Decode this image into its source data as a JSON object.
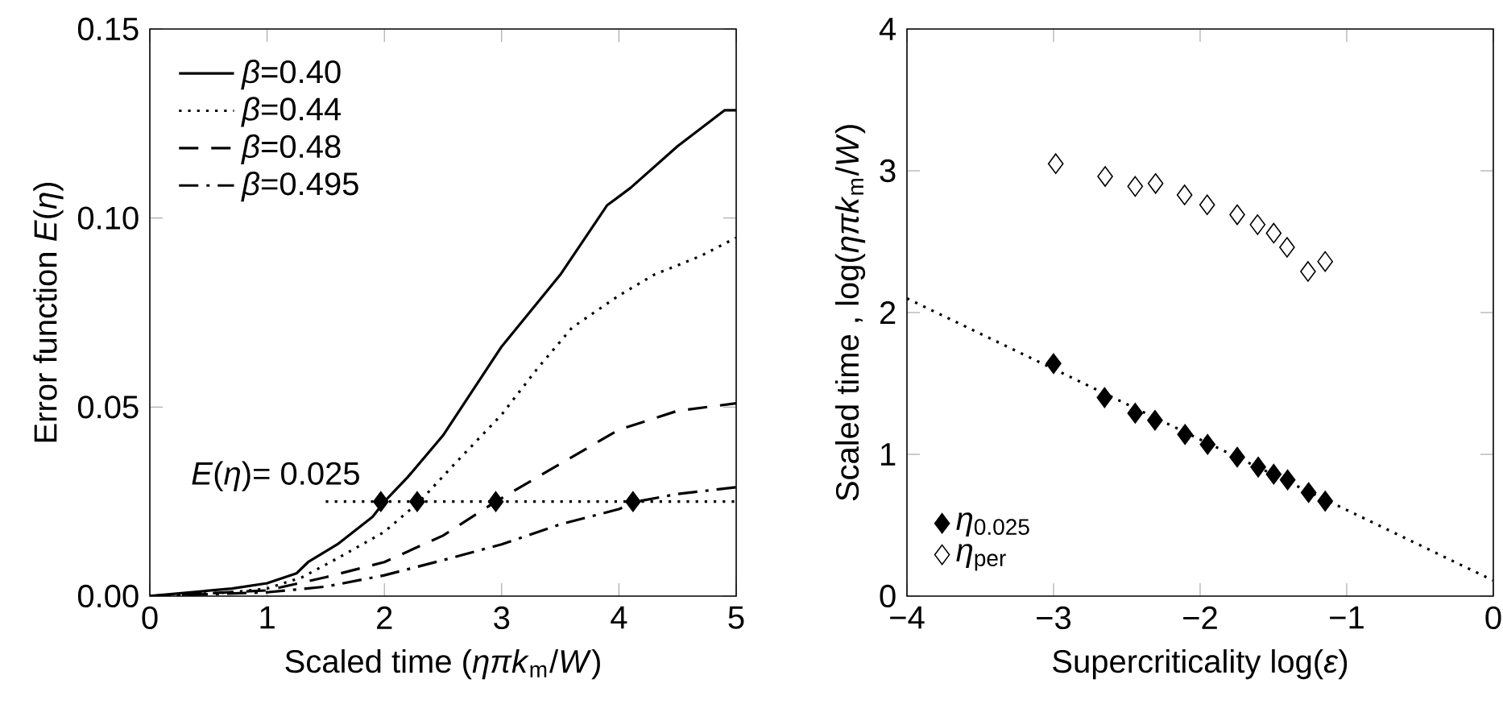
{
  "chart_data": [
    {
      "type": "line",
      "xlabel": "Scaled time (*ηπk*$_{m}$/*W*)",
      "ylabel": "Error function *E*(*η*)",
      "xlim": [
        0,
        5
      ],
      "ylim": [
        0,
        0.15
      ],
      "xticks": [
        0,
        1,
        2,
        3,
        4,
        5
      ],
      "yticks": [
        {
          "value": 0,
          "label": "0.00"
        },
        {
          "value": 0.05,
          "label": "0.05"
        },
        {
          "value": 0.1,
          "label": "0.10"
        },
        {
          "value": 0.15,
          "label": "0.15"
        }
      ],
      "legend": "top left",
      "grid": false,
      "annotations": [
        {
          "text": "*E*(*η*)= 0.025",
          "x": 1.5,
          "y": 0.025
        }
      ],
      "series": [
        {
          "name": "*β*=0.40",
          "color": "#000000",
          "line_style": "solid",
          "x": [
            0,
            0.7,
            1.0,
            1.25,
            1.35,
            1.6,
            1.9,
            2.0,
            2.2,
            2.5,
            3.0,
            3.5,
            3.9,
            4.1,
            4.5,
            4.9,
            5.0
          ],
          "values": [
            0,
            0.002,
            0.0034,
            0.006,
            0.009,
            0.0137,
            0.021,
            0.025,
            0.0315,
            0.0425,
            0.066,
            0.085,
            0.1034,
            0.108,
            0.119,
            0.1285,
            0.1285
          ]
        },
        {
          "name": "*β*=0.44",
          "color": "#000000",
          "line_style": "dotted",
          "x": [
            0,
            0.7,
            1.0,
            1.3,
            1.6,
            2.0,
            2.3,
            2.6,
            3.0,
            3.3,
            3.6,
            4.0,
            4.3,
            4.7,
            5.0
          ],
          "values": [
            0,
            0.001,
            0.002,
            0.005,
            0.01,
            0.017,
            0.025,
            0.035,
            0.048,
            0.06,
            0.071,
            0.0795,
            0.085,
            0.09,
            0.0948
          ]
        },
        {
          "name": "*β*=0.48",
          "color": "#000000",
          "line_style": "dashed",
          "x": [
            0,
            1.0,
            1.5,
            2.0,
            2.5,
            2.95,
            3.5,
            4.0,
            4.5,
            5.0
          ],
          "values": [
            0,
            0.0015,
            0.005,
            0.009,
            0.016,
            0.025,
            0.035,
            0.044,
            0.049,
            0.051
          ]
        },
        {
          "name": "*β*=0.495",
          "color": "#000000",
          "line_style": "dashdot",
          "x": [
            0,
            1.0,
            1.5,
            2.0,
            2.5,
            3.0,
            3.5,
            4.0,
            4.15,
            4.5,
            5.0
          ],
          "values": [
            0,
            0.001,
            0.0025,
            0.0055,
            0.0095,
            0.0137,
            0.019,
            0.023,
            0.025,
            0.027,
            0.0288
          ]
        },
        {
          "color": "#000000",
          "line_style": "dotted",
          "x": [
            1.5,
            5.0
          ],
          "values": [
            0.025,
            0.025
          ]
        },
        {
          "type": "scatter",
          "color": "#000000",
          "marker": "diamond",
          "x": [
            1.97,
            2.28,
            2.95,
            4.12
          ],
          "values": [
            0.025,
            0.025,
            0.025,
            0.025
          ]
        }
      ]
    },
    {
      "type": "scatter",
      "xlabel": "Supercriticality log(*ε*)",
      "ylabel": "Scaled time , log(*ηπk*$_{m}$/*W*)",
      "xlim": [
        -4,
        0
      ],
      "ylim": [
        0,
        4
      ],
      "xticks": [
        {
          "value": -4,
          "label": "−4"
        },
        {
          "value": -3,
          "label": "−3"
        },
        {
          "value": -2,
          "label": "−2"
        },
        {
          "value": -1,
          "label": "−1"
        },
        {
          "value": 0,
          "label": "0"
        }
      ],
      "yticks": [
        0,
        1,
        2,
        3,
        4
      ],
      "legend": "bottom left",
      "grid": false,
      "series": [
        {
          "type": "line",
          "color": "#000000",
          "line_style": "dotted",
          "x": [
            -4,
            0
          ],
          "values": [
            2.1,
            0.11
          ]
        },
        {
          "name": "*η*$_{0.025}$",
          "color": "#000000",
          "marker": "diamond",
          "x": [
            -3.0,
            -2.652,
            -2.443,
            -2.308,
            -2.103,
            -1.949,
            -1.747,
            -1.604,
            -1.498,
            -1.403,
            -1.26,
            -1.147
          ],
          "values": [
            1.64,
            1.4,
            1.29,
            1.24,
            1.14,
            1.07,
            0.98,
            0.91,
            0.86,
            0.82,
            0.73,
            0.67
          ]
        },
        {
          "name": "*η*$_{per}$",
          "color": "#000000",
          "marker": "diamond-open",
          "x": [
            -2.985,
            -2.648,
            -2.443,
            -2.304,
            -2.106,
            -1.952,
            -1.747,
            -1.608,
            -1.498,
            -1.407,
            -1.264,
            -1.147
          ],
          "values": [
            3.05,
            2.96,
            2.89,
            2.91,
            2.83,
            2.76,
            2.69,
            2.62,
            2.56,
            2.46,
            2.29,
            2.36
          ]
        }
      ]
    }
  ]
}
